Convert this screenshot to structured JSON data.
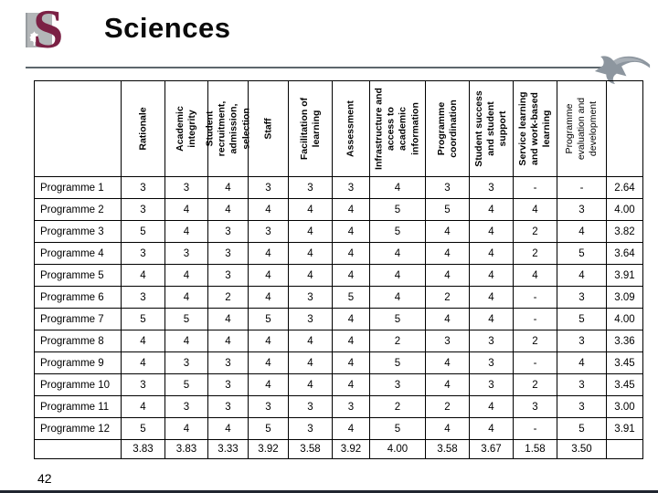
{
  "slide": {
    "title": "Sciences",
    "page_number": "42",
    "logo": {
      "letter": "S"
    }
  },
  "icons": {
    "return_arrow": "curved-arrow-pointing-left",
    "logo_leaf": "white-oak-leaf"
  },
  "colors": {
    "brand_maroon": "#7b2145",
    "logo_gray": "#b3b6b8",
    "arrow_gray": "#8d969f",
    "rule_gray": "#5c666c",
    "footer_bar": "#20252f"
  },
  "table": {
    "columns": [
      {
        "label": "Rationale",
        "bold": true
      },
      {
        "label": "Academic\nintegrity",
        "bold": true
      },
      {
        "label": "Student\nrecruitment,\nadmission,\nselection",
        "bold": true
      },
      {
        "label": "Staff",
        "bold": true
      },
      {
        "label": "Facilitation of\nlearning",
        "bold": true
      },
      {
        "label": "Assessment",
        "bold": true
      },
      {
        "label": "Infrastructure and\naccess to\nacademic\ninformation",
        "bold": true
      },
      {
        "label": "Programme\ncoordination",
        "bold": true
      },
      {
        "label": "Student success\nand student\nsupport",
        "bold": true
      },
      {
        "label": "Service learning\nand work-based\nlearning",
        "bold": true
      },
      {
        "label": "Programme\nevaluation and\ndevelopment",
        "bold": false
      }
    ],
    "rows": [
      {
        "name": "Programme 1",
        "values": [
          "3",
          "3",
          "4",
          "3",
          "3",
          "3",
          "4",
          "3",
          "3",
          "-",
          "-"
        ],
        "average": "2.64"
      },
      {
        "name": "Programme 2",
        "values": [
          "3",
          "4",
          "4",
          "4",
          "4",
          "4",
          "5",
          "5",
          "4",
          "4",
          "3"
        ],
        "average": "4.00"
      },
      {
        "name": "Programme 3",
        "values": [
          "5",
          "4",
          "3",
          "3",
          "4",
          "4",
          "5",
          "4",
          "4",
          "2",
          "4"
        ],
        "average": "3.82"
      },
      {
        "name": "Programme 4",
        "values": [
          "3",
          "3",
          "3",
          "4",
          "4",
          "4",
          "4",
          "4",
          "4",
          "2",
          "5"
        ],
        "average": "3.64"
      },
      {
        "name": "Programme 5",
        "values": [
          "4",
          "4",
          "3",
          "4",
          "4",
          "4",
          "4",
          "4",
          "4",
          "4",
          "4"
        ],
        "average": "3.91"
      },
      {
        "name": "Programme 6",
        "values": [
          "3",
          "4",
          "2",
          "4",
          "3",
          "5",
          "4",
          "2",
          "4",
          "-",
          "3"
        ],
        "average": "3.09"
      },
      {
        "name": "Programme 7",
        "values": [
          "5",
          "5",
          "4",
          "5",
          "3",
          "4",
          "5",
          "4",
          "4",
          "-",
          "5"
        ],
        "average": "4.00"
      },
      {
        "name": "Programme 8",
        "values": [
          "4",
          "4",
          "4",
          "4",
          "4",
          "4",
          "2",
          "3",
          "3",
          "2",
          "3"
        ],
        "average": "3.36"
      },
      {
        "name": "Programme 9",
        "values": [
          "4",
          "3",
          "3",
          "4",
          "4",
          "4",
          "5",
          "4",
          "3",
          "-",
          "4"
        ],
        "average": "3.45"
      },
      {
        "name": "Programme 10",
        "values": [
          "3",
          "5",
          "3",
          "4",
          "4",
          "4",
          "3",
          "4",
          "3",
          "2",
          "3"
        ],
        "average": "3.45"
      },
      {
        "name": "Programme 11",
        "values": [
          "4",
          "3",
          "3",
          "3",
          "3",
          "3",
          "2",
          "2",
          "4",
          "3",
          "3"
        ],
        "average": "3.00"
      },
      {
        "name": "Programme 12",
        "values": [
          "5",
          "4",
          "4",
          "5",
          "3",
          "4",
          "5",
          "4",
          "4",
          "-",
          "5"
        ],
        "average": "3.91"
      }
    ],
    "footer_averages": [
      "3.83",
      "3.83",
      "3.33",
      "3.92",
      "3.58",
      "3.92",
      "4.00",
      "3.58",
      "3.67",
      "1.58",
      "3.50"
    ]
  }
}
